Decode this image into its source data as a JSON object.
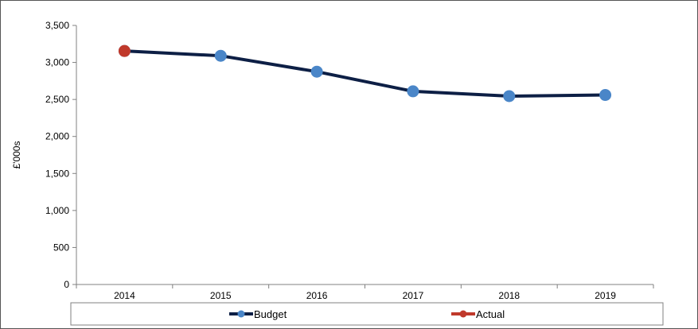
{
  "chart_data": {
    "type": "line",
    "title": "",
    "xlabel": "",
    "ylabel": "£'000s",
    "ylim": [
      0,
      3500
    ],
    "yticks": [
      "0",
      "500",
      "1,000",
      "1,500",
      "2,000",
      "2,500",
      "3,000",
      "3,500"
    ],
    "ytick_values": [
      0,
      500,
      1000,
      1500,
      2000,
      2500,
      3000,
      3500
    ],
    "categories": [
      "2014",
      "2015",
      "2016",
      "2017",
      "2018",
      "2019"
    ],
    "grid": false,
    "legend_position": "bottom",
    "series": [
      {
        "name": "Budget",
        "values": [
          3155,
          3090,
          2875,
          2610,
          2545,
          2560
        ],
        "line_color": "#0d1f45",
        "marker_color": "#4a86c8"
      },
      {
        "name": "Actual",
        "values": [
          3155,
          null,
          null,
          null,
          null,
          null
        ],
        "line_color": "#c0392b",
        "marker_color": "#c0392b"
      }
    ]
  }
}
